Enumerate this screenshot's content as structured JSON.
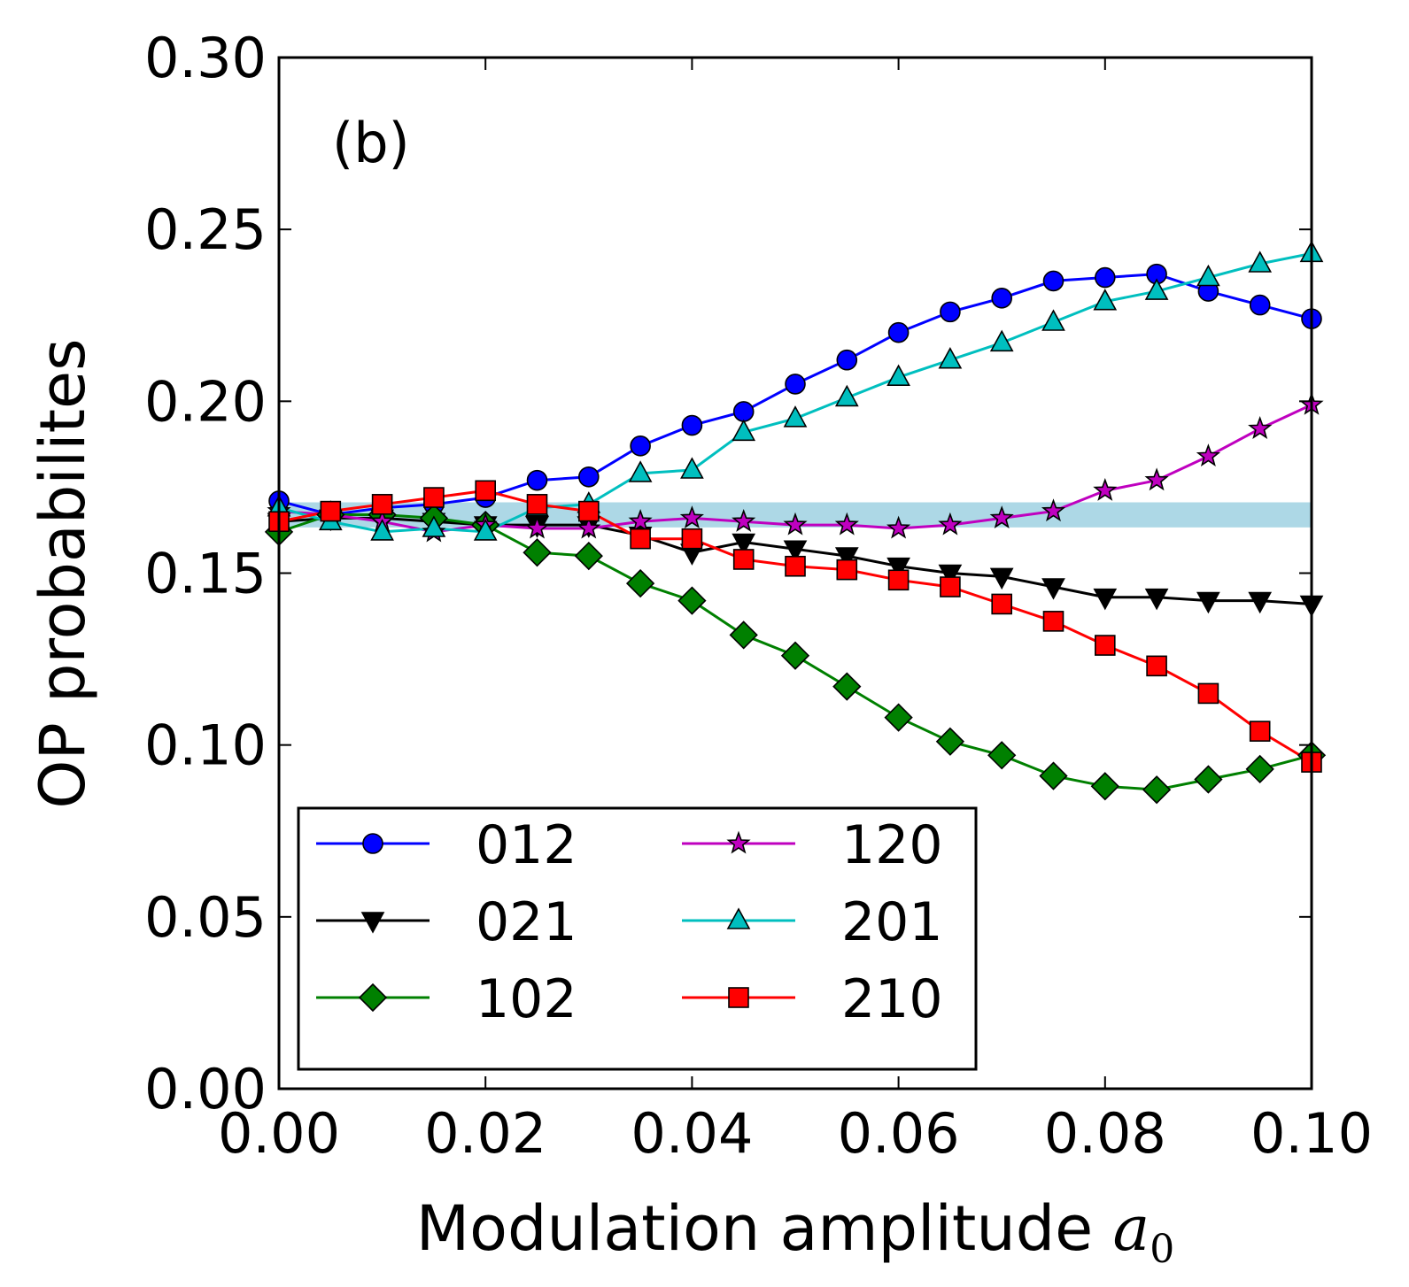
{
  "chart_data": {
    "type": "line",
    "panel_label": "(b)",
    "xlabel_text": "Modulation amplitude ",
    "xlabel_math_base": "a",
    "xlabel_math_sub": "0",
    "ylabel": "OP probabilites",
    "xlim": [
      0.0,
      0.1
    ],
    "ylim": [
      0.0,
      0.3
    ],
    "xticks": [
      0.0,
      0.02,
      0.04,
      0.06,
      0.08,
      0.1
    ],
    "xtick_labels": [
      "0.00",
      "0.02",
      "0.04",
      "0.06",
      "0.08",
      "0.10"
    ],
    "yticks": [
      0.0,
      0.05,
      0.1,
      0.15,
      0.2,
      0.25,
      0.3
    ],
    "ytick_labels": [
      "0.00",
      "0.05",
      "0.10",
      "0.15",
      "0.20",
      "0.25",
      "0.30"
    ],
    "band": {
      "y0": 0.1633,
      "y1": 0.1706,
      "color": "#add8e6",
      "description": "uniform probability band around 1/6"
    },
    "legend_location": "lower-left",
    "x": [
      0.0,
      0.005,
      0.01,
      0.015,
      0.02,
      0.025,
      0.03,
      0.035,
      0.04,
      0.045,
      0.05,
      0.055,
      0.06,
      0.065,
      0.07,
      0.075,
      0.08,
      0.085,
      0.09,
      0.095,
      0.1
    ],
    "series": [
      {
        "name": "012",
        "color": "#0000ff",
        "marker": "circle",
        "values": [
          0.171,
          0.167,
          0.169,
          0.17,
          0.172,
          0.177,
          0.178,
          0.187,
          0.193,
          0.197,
          0.205,
          0.212,
          0.22,
          0.226,
          0.23,
          0.235,
          0.236,
          0.237,
          0.232,
          0.228,
          0.224
        ]
      },
      {
        "name": "021",
        "color": "#000000",
        "marker": "triangle-down",
        "values": [
          0.165,
          0.166,
          0.166,
          0.165,
          0.164,
          0.164,
          0.164,
          0.161,
          0.156,
          0.159,
          0.157,
          0.155,
          0.152,
          0.15,
          0.149,
          0.146,
          0.143,
          0.143,
          0.142,
          0.142,
          0.141
        ]
      },
      {
        "name": "102",
        "color": "#008000",
        "marker": "diamond",
        "values": [
          0.162,
          0.167,
          0.167,
          0.166,
          0.164,
          0.156,
          0.155,
          0.147,
          0.142,
          0.132,
          0.126,
          0.117,
          0.108,
          0.101,
          0.097,
          0.091,
          0.088,
          0.087,
          0.09,
          0.093,
          0.097
        ]
      },
      {
        "name": "120",
        "color": "#bf00bf",
        "marker": "star",
        "values": [
          0.168,
          0.167,
          0.165,
          0.162,
          0.164,
          0.163,
          0.163,
          0.165,
          0.166,
          0.165,
          0.164,
          0.164,
          0.163,
          0.164,
          0.166,
          0.168,
          0.174,
          0.177,
          0.184,
          0.192,
          0.199
        ]
      },
      {
        "name": "201",
        "color": "#00bfbf",
        "marker": "triangle-up",
        "values": [
          0.169,
          0.165,
          0.162,
          0.163,
          0.162,
          0.169,
          0.17,
          0.179,
          0.18,
          0.191,
          0.195,
          0.201,
          0.207,
          0.212,
          0.217,
          0.223,
          0.229,
          0.232,
          0.236,
          0.24,
          0.243
        ]
      },
      {
        "name": "210",
        "color": "#ff0000",
        "marker": "square",
        "values": [
          0.165,
          0.168,
          0.17,
          0.172,
          0.174,
          0.17,
          0.168,
          0.16,
          0.16,
          0.154,
          0.152,
          0.151,
          0.148,
          0.146,
          0.141,
          0.136,
          0.129,
          0.123,
          0.115,
          0.104,
          0.095
        ]
      }
    ]
  }
}
